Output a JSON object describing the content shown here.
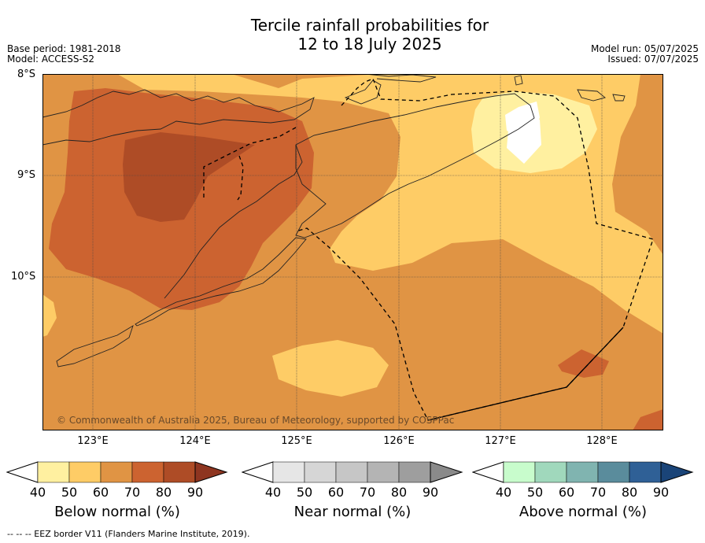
{
  "title": {
    "line1": "Tercile rainfall probabilities for",
    "line2": "12 to 18 July 2025"
  },
  "meta": {
    "base_period": "Base period: 1981-2018",
    "model": "Model: ACCESS-S2",
    "model_run": "Model run: 05/07/2025",
    "issued": "Issued: 07/07/2025"
  },
  "axes": {
    "lat_labels": [
      "8°S",
      "9°S",
      "10°S"
    ],
    "lon_labels": [
      "123°E",
      "124°E",
      "125°E",
      "126°E",
      "127°E",
      "128°E"
    ],
    "lat_range": [
      -11.5,
      -8.0
    ],
    "lon_range": [
      122.5,
      128.6
    ]
  },
  "copyright": "© Commonwealth of Australia 2025, Bureau of Meteorology, supported by COSPPac",
  "legends": {
    "below": {
      "label": "Below normal (%)",
      "ticks": [
        "40",
        "50",
        "60",
        "70",
        "80",
        "90"
      ],
      "colors": [
        "#ffffff",
        "#fff0a0",
        "#fecc66",
        "#e09444",
        "#cc6330",
        "#ae4c26",
        "#8e3520"
      ]
    },
    "near": {
      "label": "Near normal (%)",
      "ticks": [
        "40",
        "50",
        "60",
        "70",
        "80",
        "90"
      ],
      "colors": [
        "#ffffff",
        "#e6e6e6",
        "#d6d6d6",
        "#c6c6c6",
        "#b4b4b4",
        "#9e9e9e",
        "#8a8a8a"
      ]
    },
    "above": {
      "label": "Above normal (%)",
      "ticks": [
        "40",
        "50",
        "60",
        "70",
        "80",
        "90"
      ],
      "colors": [
        "#ffffff",
        "#c8fccc",
        "#a0d8bc",
        "#80b4b0",
        "#5a8c9c",
        "#2f6096",
        "#1a4478"
      ]
    }
  },
  "footer": "--  --  -- EEZ border V11 (Flanders Marine Institute, 2019)."
}
